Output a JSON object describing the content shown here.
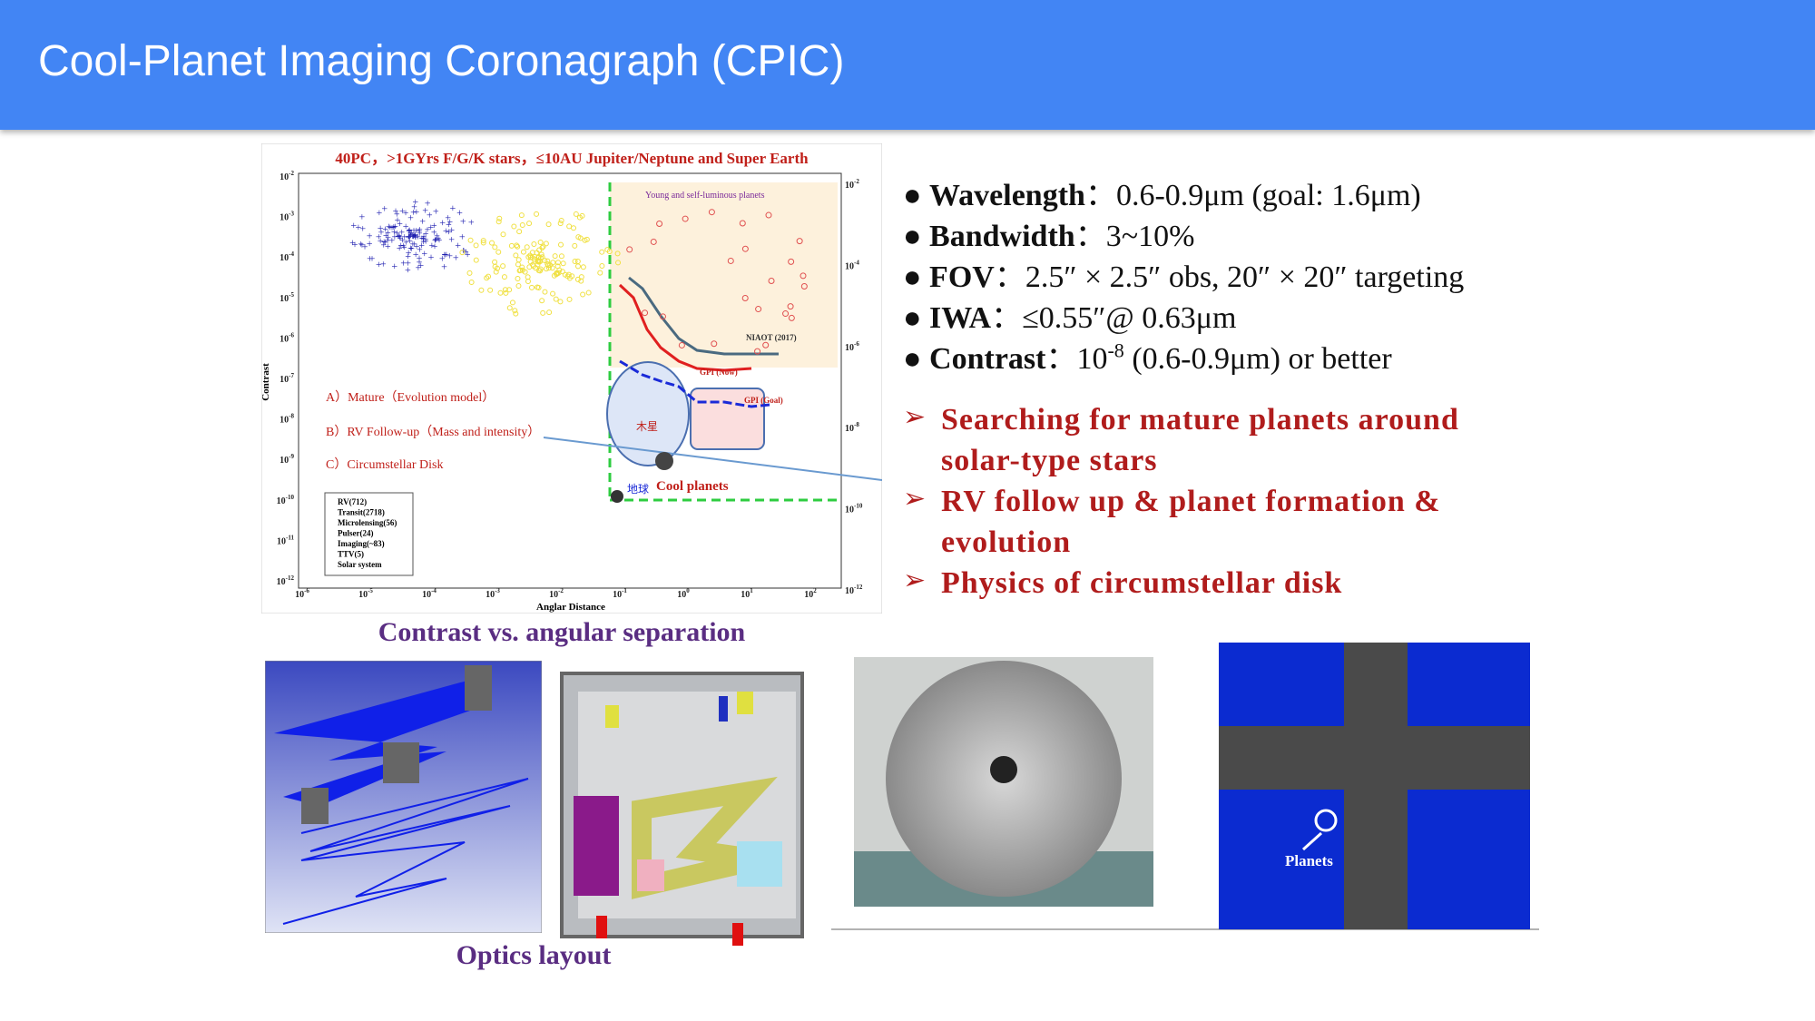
{
  "header": {
    "title": "Cool-Planet Imaging Coronagraph (CPIC)"
  },
  "specs": [
    {
      "label": "Wavelength",
      "sep": "：",
      "value": "0.6-0.9μm (goal: 1.6μm)"
    },
    {
      "label": "Bandwidth",
      "sep": "：",
      "value": "3~10%"
    },
    {
      "label": "FOV",
      "sep": "：",
      "value": "2.5″ × 2.5″ obs, 20″ × 20″ targeting"
    },
    {
      "label": "IWA",
      "sep": "：",
      "value": "≤0.55″@ 0.63μm"
    },
    {
      "label": "Contrast",
      "sep": "：",
      "value_base": "10",
      "value_exp": "-8",
      "value_rest": " (0.6-0.9μm) or better"
    }
  ],
  "goals": [
    "Searching for mature planets around solar-type stars",
    "RV follow up & planet formation & evolution",
    "Physics of circumstellar disk"
  ],
  "figure": {
    "title": "40PC，>1GYrs F/G/K stars，≤10AU Jupiter/Neptune and Super Earth",
    "y_label": "Contrast",
    "x_label": "Anglar Distance",
    "tick_base": "10",
    "yticks_exp": [
      "-2",
      "-3",
      "-4",
      "-5",
      "-6",
      "-7",
      "-8",
      "-9",
      "-10",
      "-11",
      "-12"
    ],
    "y2ticks_exp": [
      "-2",
      "-4",
      "-6",
      "-8",
      "-10",
      "-12"
    ],
    "xticks_exp": [
      "-6",
      "-5",
      "-4",
      "-3",
      "-2",
      "-1",
      "0",
      "1",
      "2"
    ],
    "groups": [
      "A）Mature（Evolution model）",
      "B）RV Follow-up（Mass and intensity）",
      "C）Circumstellar Disk"
    ],
    "legend": [
      "RV(712)",
      "Transit(2718)",
      "Microlensing(56)",
      "Pulser(24)",
      "Imaging(~83)",
      "TTV(5)",
      "Solar system"
    ],
    "region": "Young and self-luminous planets",
    "curves": [
      "NIAOT (2017)",
      "GPI (Now)",
      "GPI (Goal)"
    ],
    "jupiter": "木星",
    "earth": "地球",
    "cool": "Cool planets"
  },
  "captions": {
    "figure": "Contrast vs. angular separation",
    "optics": "Optics layout"
  },
  "planet_image": {
    "label": "Planets"
  }
}
